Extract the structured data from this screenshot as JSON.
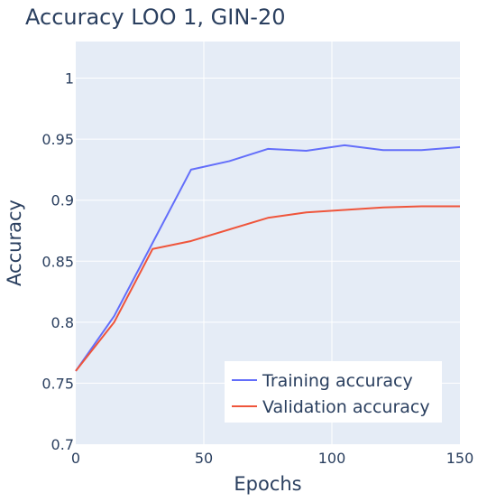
{
  "chart_data": {
    "type": "line",
    "title": "Accuracy LOO 1, GIN-20",
    "xlabel": "Epochs",
    "ylabel": "Accuracy",
    "xlim": [
      0,
      150
    ],
    "ylim": [
      0.7,
      1.03
    ],
    "x_ticks": [
      0,
      50,
      100,
      150
    ],
    "x_tick_labels": [
      "0",
      "50",
      "100",
      "150"
    ],
    "y_ticks": [
      0.7,
      0.75,
      0.8,
      0.85,
      0.9,
      0.95,
      1
    ],
    "y_tick_labels": [
      "0.7",
      "0.75",
      "0.8",
      "0.85",
      "0.9",
      "0.95",
      "1"
    ],
    "grid": true,
    "legend_position": "bottom-right",
    "series": [
      {
        "name": "Training accuracy",
        "color": "#636efa",
        "x": [
          0,
          15,
          30,
          45,
          60,
          75,
          90,
          105,
          120,
          135,
          150
        ],
        "values": [
          0.76,
          0.805,
          0.865,
          0.925,
          0.932,
          0.942,
          0.9405,
          0.945,
          0.941,
          0.941,
          0.9435
        ]
      },
      {
        "name": "Validation accuracy",
        "color": "#ef553b",
        "x": [
          0,
          15,
          30,
          45,
          60,
          75,
          90,
          105,
          120,
          135,
          150
        ],
        "values": [
          0.76,
          0.8,
          0.86,
          0.8665,
          0.876,
          0.8855,
          0.89,
          0.892,
          0.894,
          0.895,
          0.895
        ]
      }
    ]
  },
  "colors": {
    "plot_background": "#e5ecf6",
    "grid": "#ffffff",
    "text": "#2a3f5f"
  }
}
